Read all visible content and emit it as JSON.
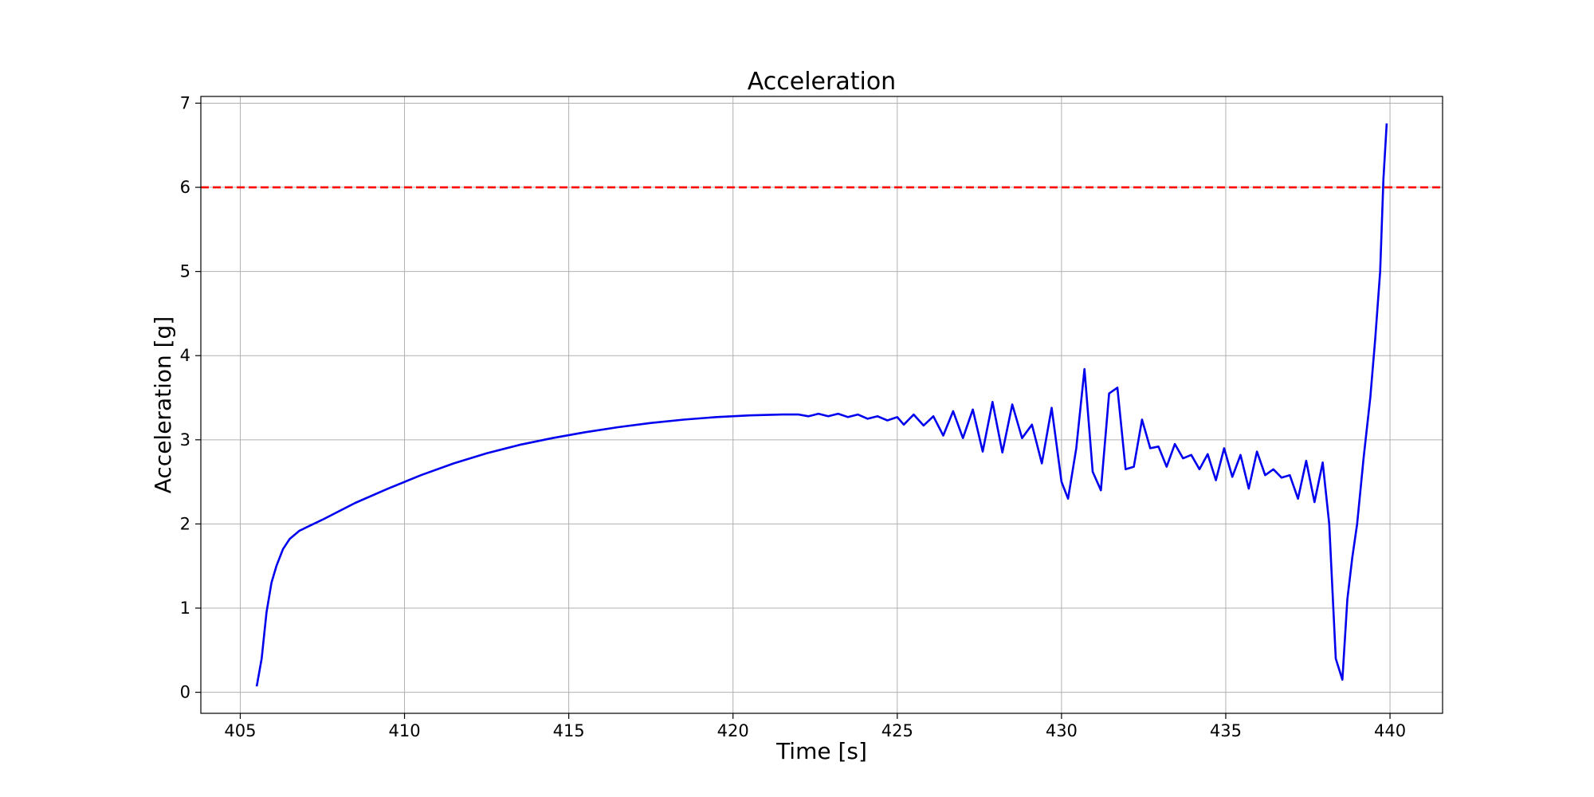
{
  "chart_data": {
    "type": "line",
    "title": "Acceleration",
    "xlabel": "Time [s]",
    "ylabel": "Acceleration [g]",
    "xlim": [
      403.8,
      441.6
    ],
    "ylim": [
      -0.25,
      7.08
    ],
    "xticks": [
      405,
      410,
      415,
      420,
      425,
      430,
      435,
      440
    ],
    "yticks": [
      0,
      1,
      2,
      3,
      4,
      5,
      6,
      7
    ],
    "grid": true,
    "reference_line": {
      "y": 6,
      "color": "#ff0000",
      "style": "dashed"
    },
    "series": [
      {
        "color": "#0000ee",
        "x": [
          405.5,
          405.65,
          405.8,
          405.95,
          406.1,
          406.3,
          406.5,
          406.8,
          407.5,
          408.5,
          409.5,
          410.5,
          411.5,
          412.5,
          413.5,
          414.5,
          415.5,
          416.5,
          417.5,
          418.5,
          419.5,
          420.5,
          421.5,
          422,
          422.3,
          422.6,
          422.9,
          423.2,
          423.5,
          423.8,
          424.1,
          424.4,
          424.7,
          425,
          425.2,
          425.5,
          425.8,
          426.1,
          426.4,
          426.7,
          427.0,
          427.3,
          427.6,
          427.9,
          428.2,
          428.5,
          428.8,
          429.1,
          429.4,
          429.7,
          430.0,
          430.2,
          430.45,
          430.7,
          430.95,
          431.2,
          431.45,
          431.7,
          431.95,
          432.2,
          432.45,
          432.7,
          432.95,
          433.2,
          433.45,
          433.7,
          433.95,
          434.2,
          434.45,
          434.7,
          434.95,
          435.2,
          435.45,
          435.7,
          435.95,
          436.2,
          436.45,
          436.7,
          436.95,
          437.2,
          437.45,
          437.7,
          437.95,
          438.15,
          438.35,
          438.55,
          438.7,
          438.85,
          439.0,
          439.2,
          439.4,
          439.55,
          439.7,
          439.8,
          439.9
        ],
        "y": [
          0.07,
          0.4,
          0.95,
          1.3,
          1.5,
          1.7,
          1.82,
          1.92,
          2.05,
          2.25,
          2.42,
          2.58,
          2.72,
          2.84,
          2.94,
          3.02,
          3.09,
          3.15,
          3.2,
          3.24,
          3.27,
          3.29,
          3.3,
          3.3,
          3.28,
          3.31,
          3.28,
          3.31,
          3.27,
          3.3,
          3.25,
          3.28,
          3.23,
          3.27,
          3.18,
          3.3,
          3.17,
          3.28,
          3.05,
          3.34,
          3.02,
          3.36,
          2.86,
          3.45,
          2.85,
          3.42,
          3.02,
          3.18,
          2.72,
          3.38,
          2.5,
          2.3,
          2.9,
          3.84,
          2.62,
          2.4,
          3.55,
          3.62,
          2.65,
          2.68,
          3.24,
          2.9,
          2.92,
          2.68,
          2.95,
          2.78,
          2.82,
          2.65,
          2.83,
          2.52,
          2.9,
          2.56,
          2.82,
          2.42,
          2.86,
          2.58,
          2.65,
          2.55,
          2.58,
          2.3,
          2.75,
          2.26,
          2.73,
          2.0,
          0.4,
          0.15,
          1.1,
          1.6,
          2.0,
          2.8,
          3.5,
          4.2,
          5.0,
          6.1,
          6.76
        ]
      }
    ]
  }
}
